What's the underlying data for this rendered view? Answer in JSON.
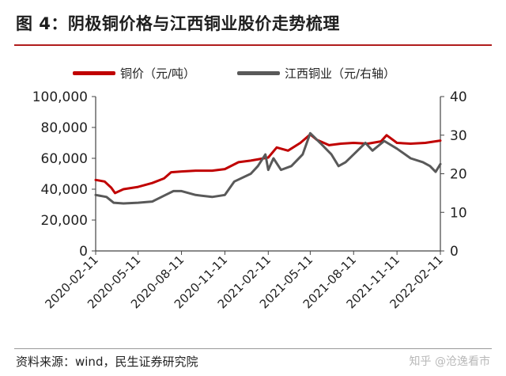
{
  "figure": {
    "title": "图 4：阴极铜价格与江西铜业股价走势梳理",
    "source": "资料来源：wind，民生证券研究院",
    "watermark": "知乎 @沧逸看市"
  },
  "colors": {
    "accent": "#b01c1c",
    "copper_line": "#c00000",
    "stock_line": "#595959"
  },
  "chart_data": {
    "type": "line",
    "title": "",
    "legend_position": "top",
    "grid": false,
    "x_ticks": [
      "2020-02-11",
      "2020-05-11",
      "2020-08-11",
      "2020-11-11",
      "2021-02-11",
      "2021-05-11",
      "2021-08-11",
      "2021-11-11",
      "2022-02-11"
    ],
    "x_range": [
      "2020-02-11",
      "2022-02-11"
    ],
    "y_left": {
      "ylim": [
        0,
        100000
      ],
      "ticks": [
        "0",
        "20,000",
        "40,000",
        "60,000",
        "80,000",
        "100,000"
      ]
    },
    "y_right": {
      "ylim": [
        0,
        40
      ],
      "ticks": [
        "0",
        "10",
        "20",
        "30",
        "40"
      ]
    },
    "series": [
      {
        "name": "铜价（元/吨）",
        "axis": "left",
        "color": "#c00000",
        "points": [
          [
            "2020-02-11",
            46000
          ],
          [
            "2020-03-01",
            45000
          ],
          [
            "2020-03-15",
            41000
          ],
          [
            "2020-03-23",
            37500
          ],
          [
            "2020-04-10",
            40000
          ],
          [
            "2020-05-11",
            41500
          ],
          [
            "2020-06-10",
            44000
          ],
          [
            "2020-07-05",
            47000
          ],
          [
            "2020-07-20",
            51000
          ],
          [
            "2020-08-11",
            51500
          ],
          [
            "2020-09-10",
            52000
          ],
          [
            "2020-10-15",
            52000
          ],
          [
            "2020-11-11",
            53000
          ],
          [
            "2020-12-10",
            57500
          ],
          [
            "2021-01-05",
            58500
          ],
          [
            "2021-02-11",
            60500
          ],
          [
            "2021-03-01",
            67000
          ],
          [
            "2021-03-25",
            65000
          ],
          [
            "2021-04-20",
            70000
          ],
          [
            "2021-05-11",
            75500
          ],
          [
            "2021-05-25",
            72000
          ],
          [
            "2021-06-20",
            68500
          ],
          [
            "2021-07-15",
            69500
          ],
          [
            "2021-08-11",
            70000
          ],
          [
            "2021-09-10",
            69500
          ],
          [
            "2021-10-08",
            71000
          ],
          [
            "2021-10-20",
            75000
          ],
          [
            "2021-11-11",
            70000
          ],
          [
            "2021-12-10",
            69500
          ],
          [
            "2022-01-10",
            70000
          ],
          [
            "2022-02-11",
            71500
          ]
        ]
      },
      {
        "name": "江西铜业（元/右轴）",
        "axis": "right",
        "color": "#595959",
        "points": [
          [
            "2020-02-11",
            14.5
          ],
          [
            "2020-03-05",
            14.0
          ],
          [
            "2020-03-20",
            12.5
          ],
          [
            "2020-04-10",
            12.3
          ],
          [
            "2020-05-11",
            12.5
          ],
          [
            "2020-06-10",
            12.8
          ],
          [
            "2020-07-08",
            14.5
          ],
          [
            "2020-07-25",
            15.5
          ],
          [
            "2020-08-11",
            15.5
          ],
          [
            "2020-09-10",
            14.5
          ],
          [
            "2020-10-15",
            14.0
          ],
          [
            "2020-11-11",
            14.5
          ],
          [
            "2020-12-01",
            18.0
          ],
          [
            "2021-01-05",
            20.0
          ],
          [
            "2021-01-20",
            22.0
          ],
          [
            "2021-02-05",
            25.0
          ],
          [
            "2021-02-11",
            21.0
          ],
          [
            "2021-02-22",
            24.0
          ],
          [
            "2021-03-10",
            21.0
          ],
          [
            "2021-04-01",
            22.0
          ],
          [
            "2021-04-25",
            25.0
          ],
          [
            "2021-05-11",
            30.5
          ],
          [
            "2021-06-01",
            28.0
          ],
          [
            "2021-06-25",
            25.0
          ],
          [
            "2021-07-10",
            22.0
          ],
          [
            "2021-07-25",
            23.0
          ],
          [
            "2021-08-11",
            25.0
          ],
          [
            "2021-09-05",
            28.0
          ],
          [
            "2021-09-20",
            26.0
          ],
          [
            "2021-10-15",
            28.5
          ],
          [
            "2021-11-11",
            26.5
          ],
          [
            "2021-12-10",
            24.0
          ],
          [
            "2022-01-05",
            23.0
          ],
          [
            "2022-01-20",
            22.0
          ],
          [
            "2022-02-01",
            20.5
          ],
          [
            "2022-02-11",
            22.5
          ]
        ]
      }
    ]
  }
}
